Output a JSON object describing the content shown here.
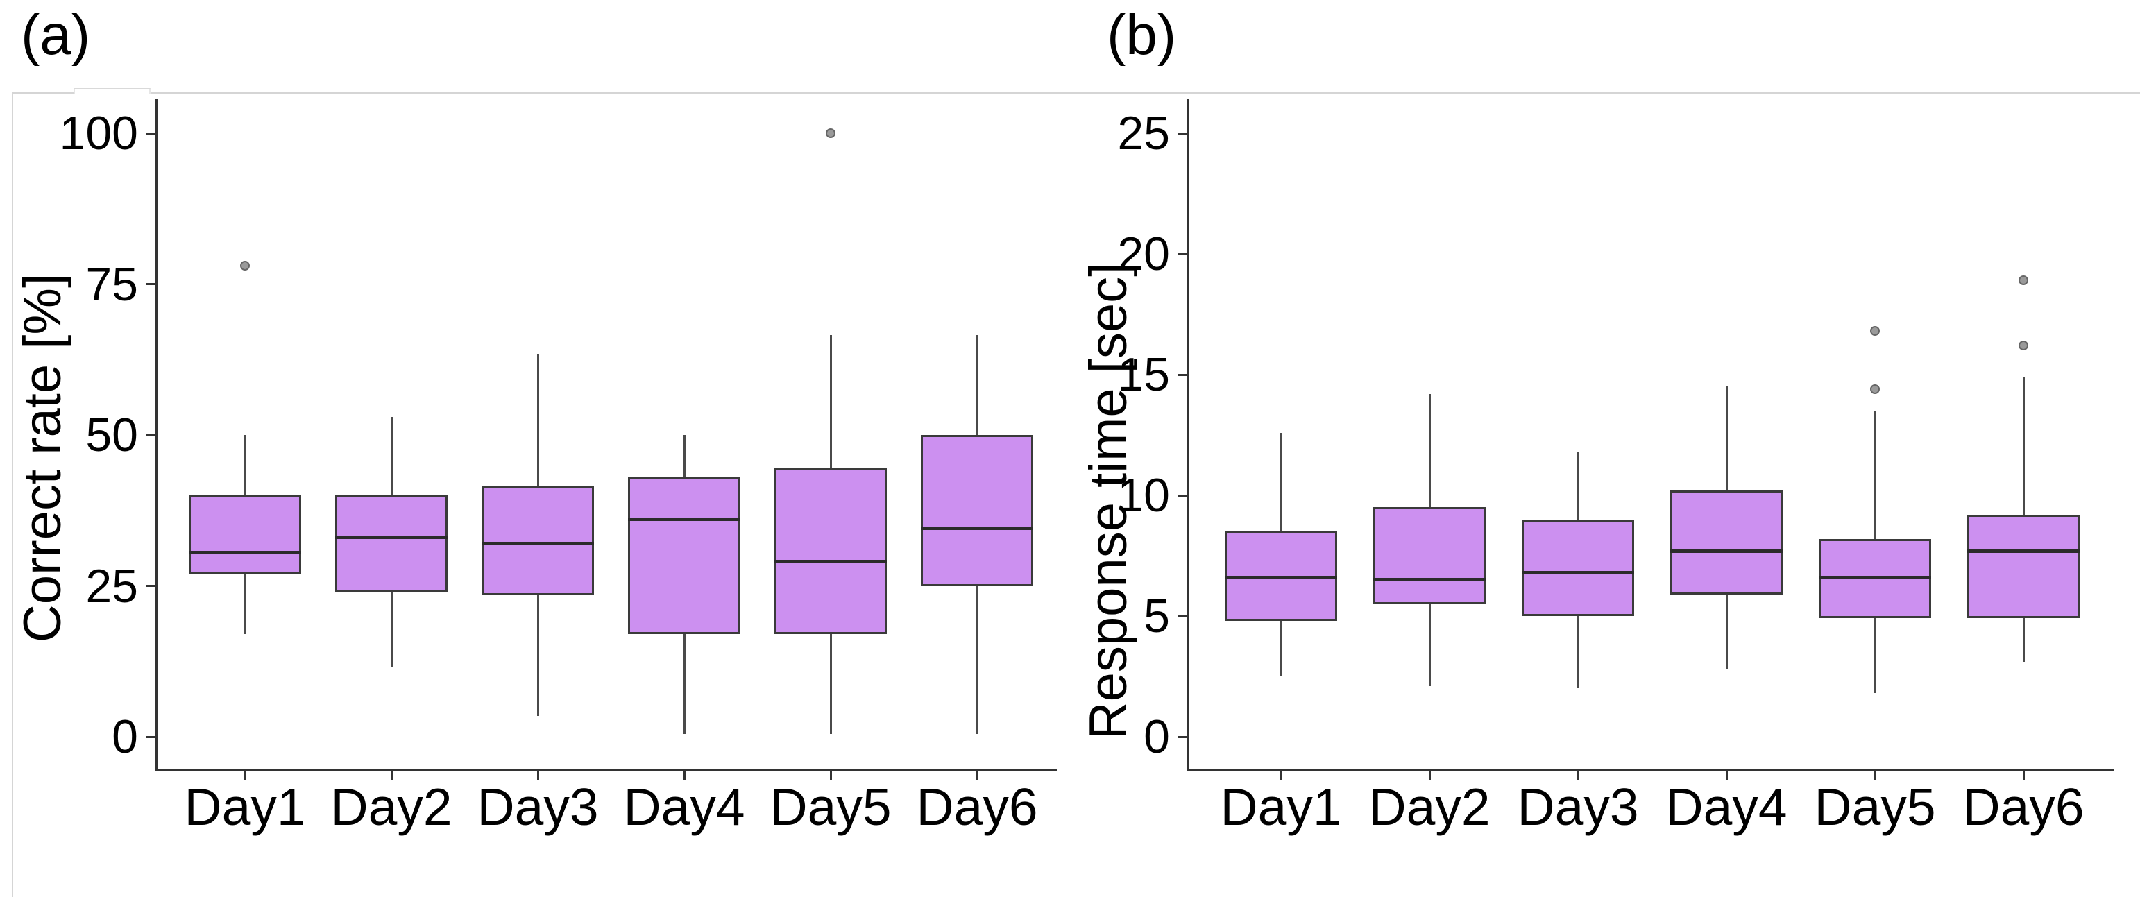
{
  "style": {
    "box_fill": "#CC90F0",
    "box_border": "#3A3A3A",
    "median_color": "#2B2B2B",
    "whisker_color": "#4A4A4A",
    "outlier_fill": "#9A9A9A",
    "outlier_border": "#666666",
    "axis_color": "#333333",
    "text_color": "#000000",
    "frame_color": "#D5D5D5",
    "background": "#FFFFFF"
  },
  "chart_data": [
    {
      "type": "boxplot",
      "panel_id": "a",
      "panel_label": "(a)",
      "ylabel": "Correct rate [%]",
      "xlabel": "",
      "ylim": [
        0,
        100
      ],
      "yticks": [
        100,
        75,
        50,
        25,
        0
      ],
      "grid": false,
      "legend_position": "none",
      "categories": [
        "Day1",
        "Day2",
        "Day3",
        "Day4",
        "Day5",
        "Day6"
      ],
      "series": [
        {
          "category": "Day1",
          "min": 17,
          "q1": 27,
          "median": 30.5,
          "q3": 40,
          "max": 50,
          "outliers": [
            78
          ]
        },
        {
          "category": "Day2",
          "min": 11.5,
          "q1": 24,
          "median": 33,
          "q3": 40,
          "max": 53,
          "outliers": []
        },
        {
          "category": "Day3",
          "min": 3.5,
          "q1": 23.5,
          "median": 32,
          "q3": 41.5,
          "max": 63.5,
          "outliers": []
        },
        {
          "category": "Day4",
          "min": 0.5,
          "q1": 17,
          "median": 36,
          "q3": 43,
          "max": 50,
          "outliers": []
        },
        {
          "category": "Day5",
          "min": 0.5,
          "q1": 17,
          "median": 29,
          "q3": 44.5,
          "max": 66.5,
          "outliers": [
            100
          ]
        },
        {
          "category": "Day6",
          "min": 0.5,
          "q1": 25,
          "median": 34.5,
          "q3": 50,
          "max": 66.5,
          "outliers": []
        }
      ]
    },
    {
      "type": "boxplot",
      "panel_id": "b",
      "panel_label": "(b)",
      "ylabel": "Response time [sec]",
      "xlabel": "",
      "ylim": [
        0,
        25
      ],
      "yticks": [
        25,
        20,
        15,
        10,
        5,
        0
      ],
      "grid": false,
      "legend_position": "none",
      "categories": [
        "Day1",
        "Day2",
        "Day3",
        "Day4",
        "Day5",
        "Day6"
      ],
      "series": [
        {
          "category": "Day1",
          "min": 2.5,
          "q1": 4.8,
          "median": 6.6,
          "q3": 8.5,
          "max": 12.6,
          "outliers": []
        },
        {
          "category": "Day2",
          "min": 2.1,
          "q1": 5.5,
          "median": 6.5,
          "q3": 9.5,
          "max": 14.2,
          "outliers": []
        },
        {
          "category": "Day3",
          "min": 2.0,
          "q1": 5.0,
          "median": 6.8,
          "q3": 9.0,
          "max": 11.8,
          "outliers": []
        },
        {
          "category": "Day4",
          "min": 2.8,
          "q1": 5.9,
          "median": 7.7,
          "q3": 10.2,
          "max": 14.5,
          "outliers": []
        },
        {
          "category": "Day5",
          "min": 1.8,
          "q1": 4.9,
          "median": 6.6,
          "q3": 8.2,
          "max": 13.5,
          "outliers": [
            16.8,
            14.4
          ]
        },
        {
          "category": "Day6",
          "min": 3.1,
          "q1": 4.9,
          "median": 7.7,
          "q3": 9.2,
          "max": 14.9,
          "outliers": [
            18.9,
            16.2
          ]
        }
      ]
    }
  ]
}
